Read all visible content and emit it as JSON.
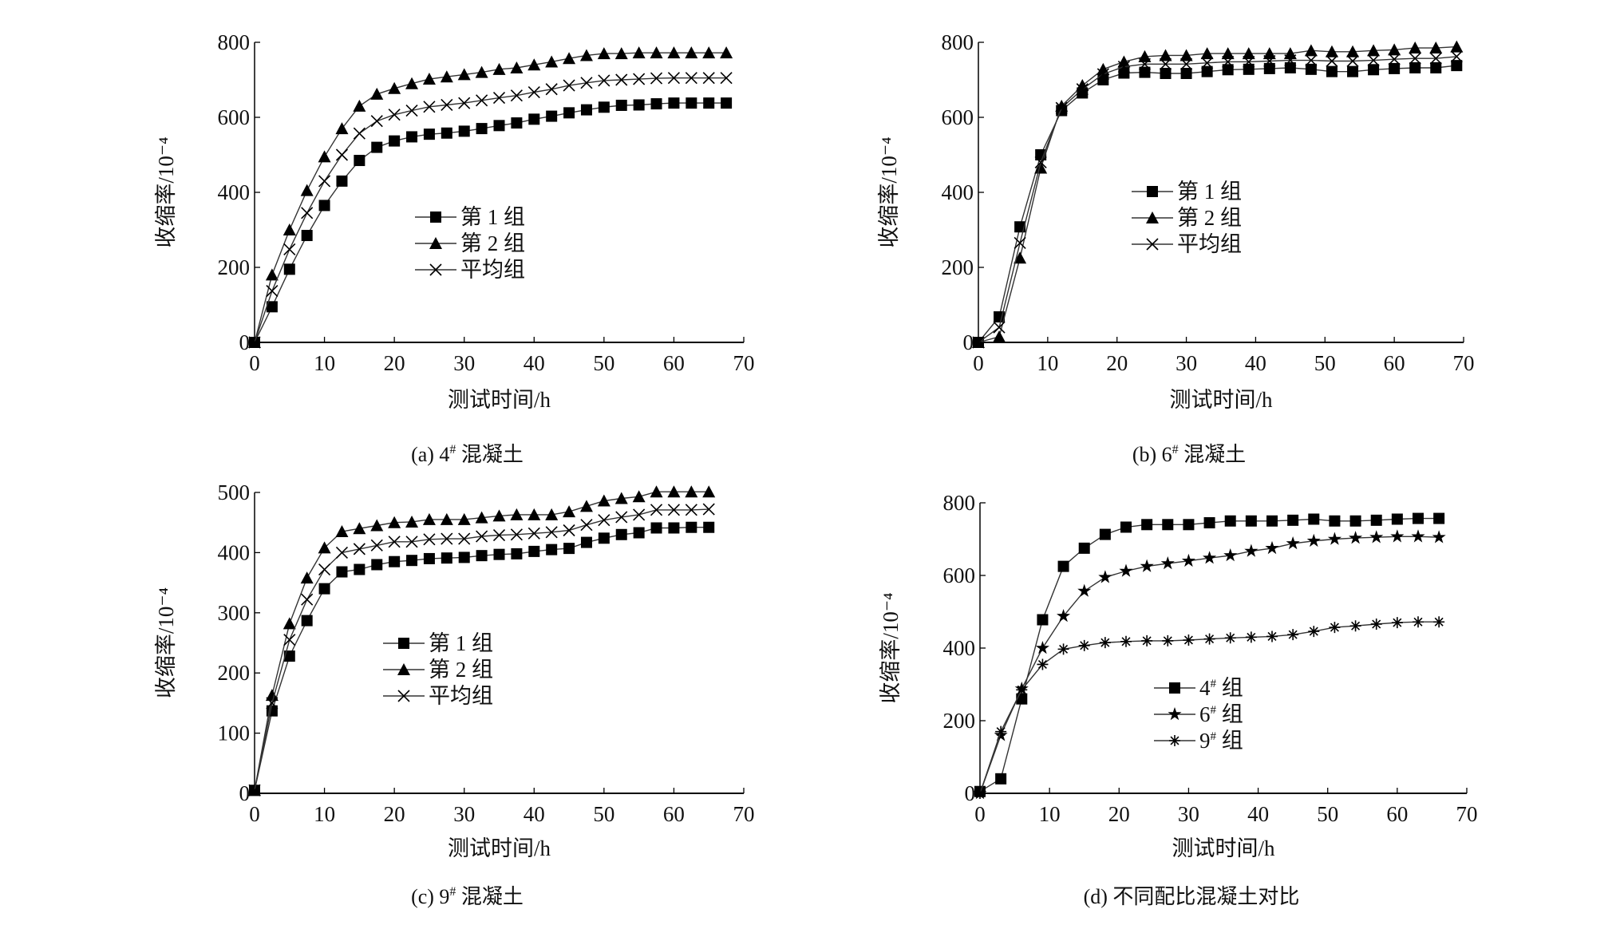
{
  "chart_data": [
    {
      "type": "line",
      "caption": {
        "prefix": "(a) 4",
        "sup": "#",
        "rest": " 混凝土"
      },
      "xlabel": "测试时间/h",
      "ylabel": "收缩率/10⁻⁴",
      "xlim": [
        0,
        70
      ],
      "ylim": [
        0,
        800
      ],
      "xticks": [
        "0",
        "10",
        "20",
        "30",
        "40",
        "50",
        "60",
        "70"
      ],
      "yticks": [
        "0",
        "200",
        "400",
        "600",
        "800"
      ],
      "legend_position": "center",
      "x": [
        0,
        2.5,
        5,
        7.5,
        10,
        12.5,
        15,
        17.5,
        20,
        22.5,
        25,
        27.5,
        30,
        32.5,
        35,
        37.5,
        40,
        42.5,
        45,
        47.5,
        50,
        52.5,
        55,
        57.5,
        60,
        62.5,
        65,
        67.5
      ],
      "series": [
        {
          "name": "第 1 组",
          "marker": "square",
          "values": [
            0,
            95,
            195,
            285,
            365,
            430,
            485,
            520,
            537,
            548,
            555,
            558,
            563,
            570,
            578,
            585,
            595,
            603,
            612,
            620,
            627,
            632,
            633,
            636,
            638,
            638,
            638,
            638
          ]
        },
        {
          "name": "第 2 组",
          "marker": "triangle",
          "values": [
            0,
            180,
            300,
            405,
            495,
            570,
            630,
            662,
            677,
            690,
            702,
            708,
            714,
            720,
            728,
            732,
            740,
            748,
            757,
            765,
            770,
            770,
            772,
            772,
            772,
            772,
            772,
            772
          ]
        },
        {
          "name": "平均组",
          "marker": "x",
          "values": [
            0,
            137,
            248,
            345,
            430,
            500,
            557,
            590,
            607,
            618,
            628,
            633,
            638,
            645,
            652,
            658,
            667,
            675,
            685,
            692,
            698,
            700,
            702,
            704,
            705,
            705,
            705,
            705
          ]
        }
      ]
    },
    {
      "type": "line",
      "caption": {
        "prefix": "(b) 6",
        "sup": "#",
        "rest": " 混凝土"
      },
      "xlabel": "测试时间/h",
      "ylabel": "收缩率/10⁻⁴",
      "xlim": [
        0,
        70
      ],
      "ylim": [
        0,
        800
      ],
      "xticks": [
        "0",
        "10",
        "20",
        "30",
        "40",
        "50",
        "60",
        "70"
      ],
      "yticks": [
        "0",
        "200",
        "400",
        "600",
        "800"
      ],
      "legend_position": "center",
      "x": [
        0,
        3,
        6,
        9,
        12,
        15,
        18,
        21,
        24,
        27,
        30,
        33,
        36,
        39,
        42,
        45,
        48,
        51,
        54,
        57,
        60,
        63,
        66,
        69
      ],
      "series": [
        {
          "name": "第 1 组",
          "marker": "square",
          "values": [
            0,
            68,
            308,
            500,
            618,
            665,
            700,
            718,
            720,
            717,
            717,
            722,
            727,
            728,
            730,
            732,
            728,
            722,
            722,
            727,
            730,
            732,
            732,
            738
          ]
        },
        {
          "name": "第 2 组",
          "marker": "triangle",
          "values": [
            0,
            15,
            225,
            465,
            630,
            685,
            728,
            748,
            762,
            765,
            765,
            770,
            770,
            770,
            770,
            770,
            778,
            775,
            775,
            778,
            780,
            785,
            785,
            788
          ]
        },
        {
          "name": "平均组",
          "marker": "x",
          "values": [
            0,
            40,
            265,
            480,
            625,
            675,
            715,
            735,
            742,
            742,
            742,
            745,
            748,
            748,
            750,
            752,
            752,
            750,
            750,
            752,
            755,
            757,
            757,
            762
          ]
        }
      ]
    },
    {
      "type": "line",
      "caption": {
        "prefix": "(c) 9",
        "sup": "#",
        "rest": " 混凝土"
      },
      "xlabel": "测试时间/h",
      "ylabel": "收缩率/10⁻⁴",
      "xlim": [
        0,
        70
      ],
      "ylim": [
        0,
        500
      ],
      "xticks": [
        "0",
        "10",
        "20",
        "30",
        "40",
        "50",
        "60",
        "70"
      ],
      "yticks": [
        "0",
        "100",
        "200",
        "300",
        "400",
        "500"
      ],
      "legend_position": "center",
      "x": [
        0,
        2.5,
        5,
        7.5,
        10,
        12.5,
        15,
        17.5,
        20,
        22.5,
        25,
        27.5,
        30,
        32.5,
        35,
        37.5,
        40,
        42.5,
        45,
        47.5,
        50,
        52.5,
        55,
        57.5,
        60,
        62.5,
        65
      ],
      "series": [
        {
          "name": "第 1 组",
          "marker": "square",
          "values": [
            5,
            137,
            228,
            287,
            340,
            368,
            372,
            380,
            385,
            387,
            390,
            391,
            392,
            395,
            397,
            398,
            402,
            405,
            407,
            417,
            424,
            430,
            433,
            441,
            441,
            442,
            442
          ]
        },
        {
          "name": "第 2 组",
          "marker": "triangle",
          "values": [
            5,
            163,
            282,
            358,
            408,
            435,
            440,
            445,
            450,
            451,
            455,
            455,
            455,
            458,
            461,
            463,
            463,
            463,
            468,
            477,
            486,
            490,
            493,
            501,
            501,
            501,
            501
          ]
        },
        {
          "name": "平均组",
          "marker": "x",
          "values": [
            5,
            150,
            255,
            322,
            372,
            400,
            406,
            412,
            418,
            418,
            422,
            423,
            423,
            427,
            429,
            430,
            432,
            434,
            437,
            446,
            454,
            459,
            463,
            471,
            471,
            471,
            472
          ]
        }
      ]
    },
    {
      "type": "line",
      "caption": {
        "prefix": "(d) 不同配比混凝土对比",
        "sup": "",
        "rest": ""
      },
      "xlabel": "测试时间/h",
      "ylabel": "收缩率/10⁻⁴",
      "xlim": [
        0,
        70
      ],
      "ylim": [
        0,
        800
      ],
      "xticks": [
        "0",
        "10",
        "20",
        "30",
        "40",
        "50",
        "60",
        "70"
      ],
      "yticks": [
        "0",
        "200",
        "400",
        "600",
        "800"
      ],
      "legend_position": "center",
      "x": [
        0,
        3,
        6,
        9,
        12,
        15,
        18,
        21,
        24,
        27,
        30,
        33,
        36,
        39,
        42,
        45,
        48,
        51,
        54,
        57,
        60,
        63,
        66
      ],
      "series": [
        {
          "name": "4# 组",
          "marker": "square",
          "values": [
            5,
            40,
            260,
            478,
            625,
            675,
            713,
            733,
            740,
            740,
            740,
            745,
            750,
            750,
            750,
            752,
            755,
            750,
            750,
            752,
            755,
            757,
            757
          ]
        },
        {
          "name": "6# 组",
          "marker": "star",
          "values": [
            0,
            160,
            288,
            400,
            488,
            557,
            595,
            612,
            625,
            633,
            640,
            648,
            655,
            667,
            675,
            688,
            695,
            700,
            703,
            705,
            707,
            707,
            705
          ]
        },
        {
          "name": "9# 组",
          "marker": "asterisk",
          "values": [
            0,
            170,
            285,
            355,
            397,
            407,
            415,
            418,
            420,
            420,
            422,
            425,
            428,
            430,
            432,
            437,
            446,
            457,
            461,
            466,
            470,
            472,
            472
          ]
        }
      ]
    }
  ]
}
